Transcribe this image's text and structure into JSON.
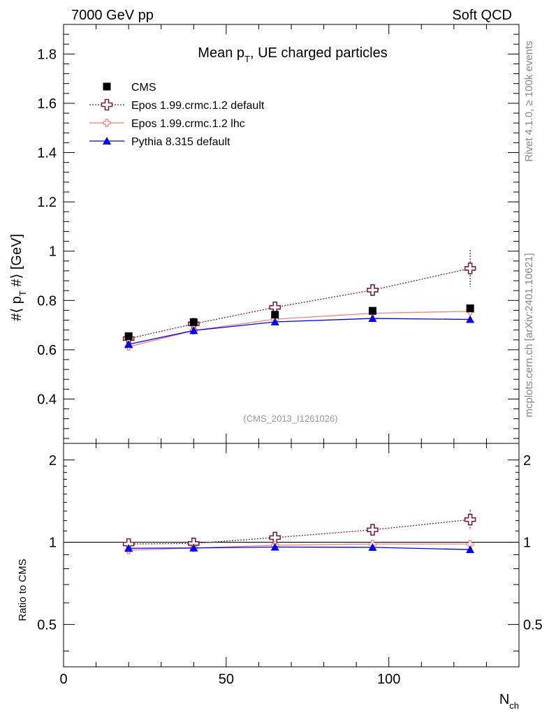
{
  "header": {
    "left": "7000 GeV pp",
    "right": "Soft QCD"
  },
  "side_labels": {
    "rivet": "Rivet 4.1.0, ≥ 100k events",
    "mcplots": "mcplots.cern.ch [arXiv:2401.10621]"
  },
  "chart_data": [
    {
      "type": "scatter",
      "panel": "main",
      "title": "Mean p_T, UE charged particles",
      "title_parts": {
        "main": "Mean p",
        "sub": "T",
        "rest": ", UE charged particles"
      },
      "analysis_id": "(CMS_2013_I1261026)",
      "ylabel_parts": {
        "main": "#⟨ p",
        "sub": "T",
        "rest": " #⟩ [GeV]"
      },
      "xlabel_parts": {
        "main": "N",
        "sub": "ch"
      },
      "xlim": [
        0,
        140
      ],
      "ylim": [
        0.22,
        1.92
      ],
      "x_ticks": [
        0,
        50,
        100
      ],
      "x_tick_labels": [
        "0",
        "50",
        "100"
      ],
      "y_ticks": [
        0.4,
        0.6,
        0.8,
        1.0,
        1.2,
        1.4,
        1.6,
        1.8
      ],
      "y_tick_labels": [
        "0.4",
        "0.6",
        "0.8",
        "1",
        "1.2",
        "1.4",
        "1.6",
        "1.8"
      ],
      "x": [
        20,
        40,
        65,
        95,
        125
      ],
      "legend_position": "top-left",
      "series": [
        {
          "name": "CMS",
          "color": "#000000",
          "marker": "square",
          "line": "none",
          "values": [
            0.655,
            0.712,
            0.742,
            0.758,
            0.768
          ],
          "errors": [
            0,
            0,
            0,
            0,
            0
          ]
        },
        {
          "name": "Epos 1.99.crmc.1.2 default",
          "color": "#7a1f3d",
          "marker": "open-cross",
          "line": "dotted",
          "values": [
            0.645,
            0.705,
            0.772,
            0.842,
            0.93
          ],
          "errors": [
            0,
            0,
            0,
            0,
            0.075
          ]
        },
        {
          "name": "Epos 1.99.crmc.1.2 lhc",
          "color": "#f08080",
          "marker": "small-open-cross",
          "line": "solid",
          "values": [
            0.612,
            0.678,
            0.724,
            0.748,
            0.756
          ],
          "errors": [
            0,
            0,
            0,
            0,
            0
          ]
        },
        {
          "name": "Pythia 8.315 default",
          "color": "#0000ee",
          "marker": "triangle",
          "line": "solid",
          "values": [
            0.622,
            0.678,
            0.713,
            0.727,
            0.723
          ],
          "errors": [
            0,
            0,
            0,
            0,
            0
          ]
        }
      ]
    },
    {
      "type": "scatter",
      "panel": "ratio",
      "ylabel": "Ratio to CMS",
      "ylim": [
        0.35,
        2.3
      ],
      "y_scale": "log",
      "y_ticks": [
        0.5,
        1,
        2
      ],
      "y_tick_labels": [
        "0.5",
        "1",
        "2"
      ],
      "reference_line": 1,
      "x": [
        20,
        40,
        65,
        95,
        125
      ],
      "series": [
        {
          "name": "Epos 1.99.crmc.1.2 default",
          "color": "#7a1f3d",
          "marker": "open-cross",
          "line": "dotted",
          "values": [
            0.985,
            0.99,
            1.04,
            1.11,
            1.21
          ],
          "errors": [
            0,
            0,
            0,
            0,
            0.1
          ]
        },
        {
          "name": "Epos 1.99.crmc.1.2 lhc",
          "color": "#f08080",
          "marker": "small-open-cross",
          "line": "solid",
          "values": [
            0.935,
            0.952,
            0.975,
            0.985,
            0.985
          ],
          "errors": [
            0,
            0,
            0,
            0,
            0
          ]
        },
        {
          "name": "Pythia 8.315 default",
          "color": "#0000ee",
          "marker": "triangle",
          "line": "solid",
          "values": [
            0.95,
            0.953,
            0.96,
            0.958,
            0.94
          ],
          "errors": [
            0,
            0,
            0,
            0,
            0
          ]
        }
      ]
    }
  ]
}
